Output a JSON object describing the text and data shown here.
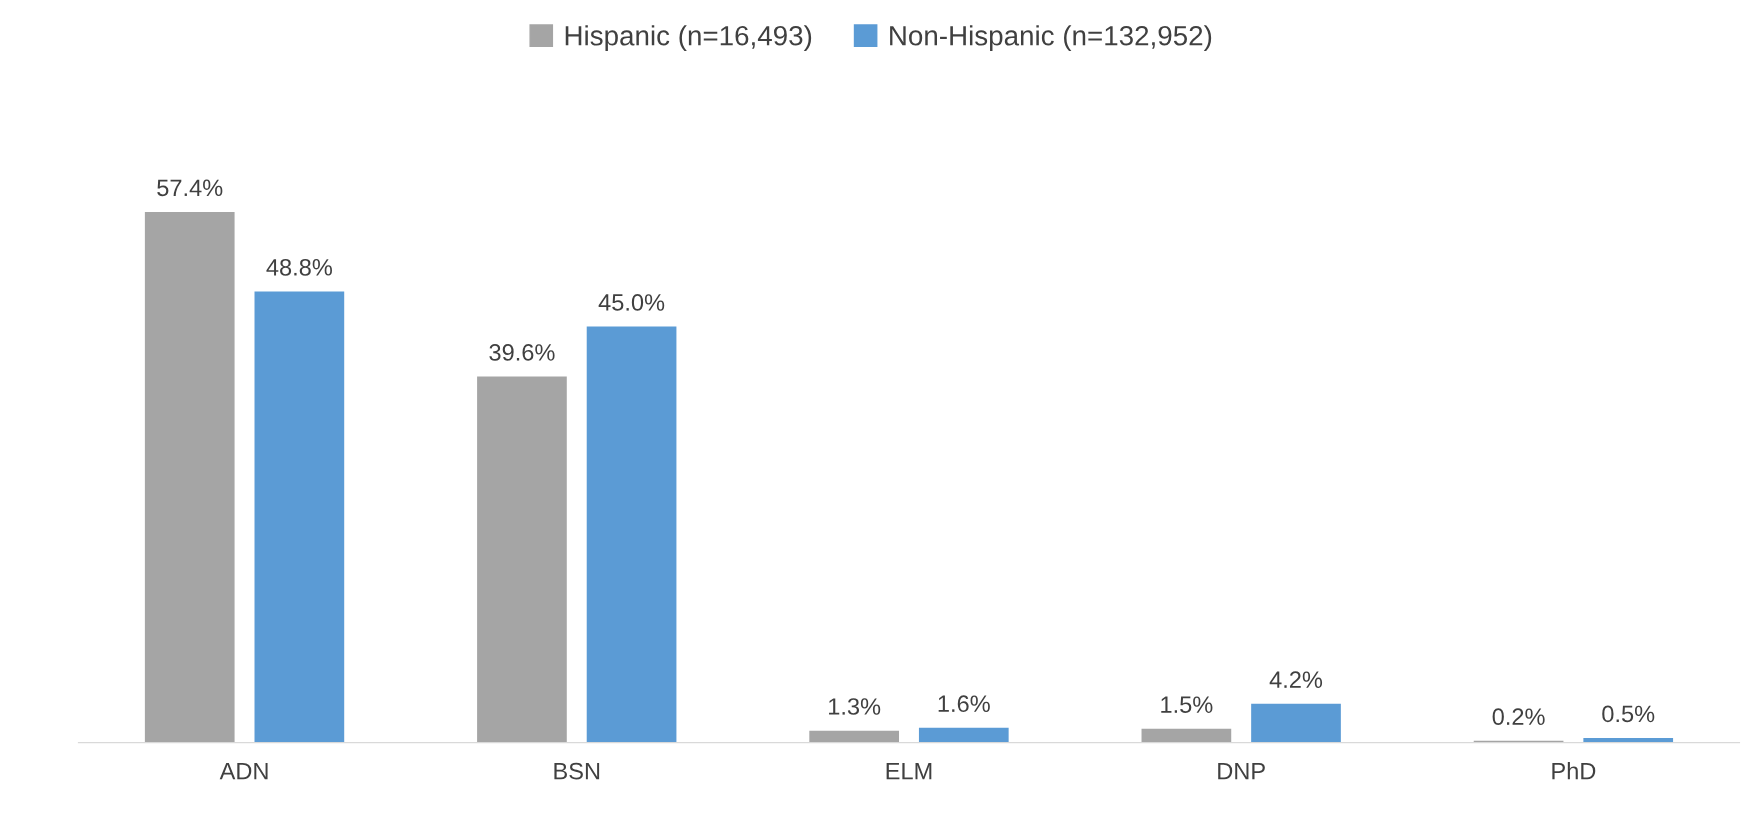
{
  "chart_data": {
    "type": "bar",
    "categories": [
      "ADN",
      "BSN",
      "ELM",
      "DNP",
      "PhD"
    ],
    "legend": "top",
    "grid": false,
    "series": [
      {
        "name": "Hispanic (n=16,493)",
        "color": "#a5a5a5",
        "values": [
          57.4,
          39.6,
          1.3,
          1.5,
          0.2
        ],
        "value_labels": [
          "57.4%",
          "39.6%",
          "1.3%",
          "1.5%",
          "0.2%"
        ]
      },
      {
        "name": "Non-Hispanic (n=132,952)",
        "color": "#5b9bd5",
        "values": [
          48.8,
          45.0,
          1.6,
          4.2,
          0.5
        ],
        "value_labels": [
          "48.8%",
          "45.0%",
          "1.6%",
          "4.2%",
          "0.5%"
        ]
      }
    ]
  }
}
